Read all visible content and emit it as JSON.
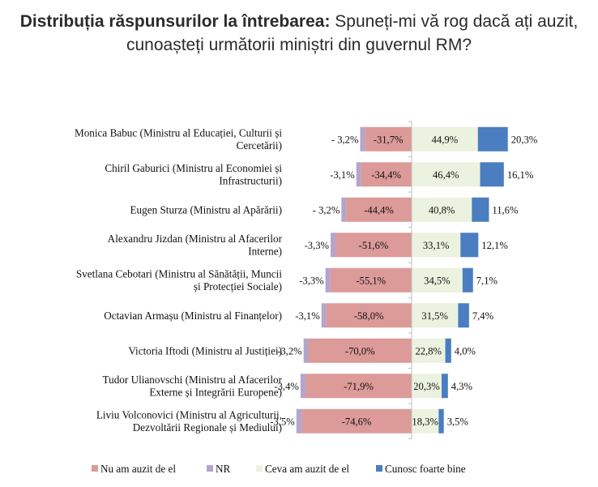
{
  "title": {
    "bold": "Distribuția răspunsurilor la întrebarea:",
    "rest": "Spuneți-mi vă rog dacă ați auzit, cunoașteți următorii miniștri din guvernul RM?"
  },
  "colors": {
    "nu_am_auzit": "#dc9a98",
    "nr": "#b3a5cc",
    "ceva": "#ebf2df",
    "cunosc": "#4a7ec0",
    "axis": "#bfbfbf"
  },
  "chart_data": {
    "type": "bar",
    "orientation": "horizontal",
    "stacking": "diverging",
    "categories": [
      [
        "Monica Babuc (Ministru al Educației, Culturii și",
        "Cercetării)"
      ],
      [
        "Chiril Gaburici (Ministru al Economiei și",
        "Infrastructurii)"
      ],
      [
        "Eugen Sturza (Ministru al Apărării)"
      ],
      [
        "Alexandru Jizdan (Ministru al Afacerilor",
        "Interne)"
      ],
      [
        "Svetlana Cebotari (Ministru al Sănătății, Muncii",
        "și Protecției Sociale)"
      ],
      [
        "Octavian Armașu (Ministru al Finanțelor)"
      ],
      [
        "Victoria Iftodi (Ministru al Justiției)"
      ],
      [
        "Tudor Ulianovschi (Ministru al Afacerilor",
        "Externe și Integrării Europene)"
      ],
      [
        "Liviu Volconovici (Ministru al Agriculturii,",
        "Dezvoltării Regionale și Mediului)"
      ]
    ],
    "series": [
      {
        "name": "Nu am auzit de el",
        "values": [
          -31.7,
          -34.4,
          -44.4,
          -51.6,
          -55.1,
          -58.0,
          -70.0,
          -71.9,
          -74.6
        ],
        "labels": [
          "-31,7%",
          "-34,4%",
          "-44,4%",
          "-51,6%",
          "-55,1%",
          "-58,0%",
          "-70,0%",
          "-71,9%",
          "-74,6%"
        ]
      },
      {
        "name": "NR",
        "values": [
          -3.2,
          -3.1,
          -3.2,
          -3.3,
          -3.3,
          -3.1,
          -3.2,
          -3.4,
          -3.5
        ],
        "labels": [
          "- 3,2%",
          "-3,1%",
          "- 3,2%",
          "-3,3%",
          "-3,3%",
          "-3,1%",
          "-3,2%",
          "-3,4%",
          "-3,5%"
        ]
      },
      {
        "name": "Ceva am auzit de el",
        "values": [
          44.9,
          46.4,
          40.8,
          33.1,
          34.5,
          31.5,
          22.8,
          20.3,
          18.3
        ],
        "labels": [
          "44,9%",
          "46,4%",
          "40,8%",
          "33,1%",
          "34,5%",
          "31,5%",
          "22,8%",
          "20,3%",
          "18,3%"
        ]
      },
      {
        "name": "Cunosc foarte bine",
        "values": [
          20.3,
          16.1,
          11.6,
          12.1,
          7.1,
          7.4,
          4.0,
          4.3,
          3.5
        ],
        "labels": [
          "20,3%",
          "16,1%",
          "11,6%",
          "12,1%",
          "7,1%",
          "7,4%",
          "4,0%",
          "4,3%",
          "3,5%"
        ]
      }
    ],
    "legend": {
      "position": "bottom",
      "items": [
        "Nu am auzit de el",
        "NR",
        "Ceva am auzit de el",
        "Cunosc foarte bine"
      ]
    },
    "grid": false
  }
}
